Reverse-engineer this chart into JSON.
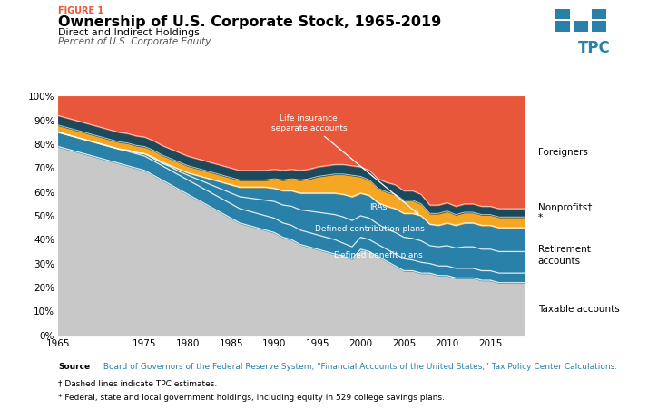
{
  "title_figure": "FIGURE 1",
  "title_main": "Ownership of U.S. Corporate Stock, 1965-2019",
  "title_sub": "Direct and Indirect Holdings",
  "title_yaxis": "Percent of U.S. Corporate Equity",
  "years": [
    1965,
    1966,
    1967,
    1968,
    1969,
    1970,
    1971,
    1972,
    1973,
    1974,
    1975,
    1976,
    1977,
    1978,
    1979,
    1980,
    1981,
    1982,
    1983,
    1984,
    1985,
    1986,
    1987,
    1988,
    1989,
    1990,
    1991,
    1992,
    1993,
    1994,
    1995,
    1996,
    1997,
    1998,
    1999,
    2000,
    2001,
    2002,
    2003,
    2004,
    2005,
    2006,
    2007,
    2008,
    2009,
    2010,
    2011,
    2012,
    2013,
    2014,
    2015,
    2016,
    2017,
    2018,
    2019
  ],
  "taxable_accounts": [
    79,
    78,
    77,
    76,
    75,
    74,
    73,
    72,
    71,
    70,
    69,
    67,
    65,
    63,
    61,
    59,
    57,
    55,
    53,
    51,
    49,
    47,
    46,
    45,
    44,
    43,
    41,
    40,
    38,
    37,
    36,
    35,
    34,
    33,
    32,
    36,
    35,
    33,
    31,
    29,
    27,
    27,
    26,
    26,
    25,
    25,
    24,
    24,
    24,
    23,
    23,
    22,
    22,
    22,
    22
  ],
  "defined_benefit": [
    6,
    6,
    6,
    6,
    6,
    6,
    6,
    6,
    6,
    6,
    6,
    6,
    6,
    6,
    6,
    6,
    6,
    6,
    6,
    6,
    6,
    6,
    6,
    6,
    6,
    6,
    6,
    6,
    6,
    6,
    6,
    6,
    6,
    5.5,
    5,
    5,
    5,
    5,
    5,
    5,
    5,
    4.5,
    4.5,
    4,
    4,
    4,
    4,
    4,
    4,
    4,
    4,
    4,
    4,
    4,
    4
  ],
  "defined_contribution": [
    0,
    0,
    0,
    0,
    0,
    0,
    0,
    0,
    0.5,
    0.5,
    1,
    1,
    1,
    1.5,
    1.5,
    2,
    2.5,
    3,
    3.5,
    4,
    4.5,
    5,
    5.5,
    6,
    6.5,
    7,
    7.5,
    8,
    8.5,
    9,
    9.5,
    10,
    10.5,
    11,
    11,
    9,
    9,
    8.5,
    8.5,
    9,
    9,
    9,
    9,
    7.5,
    8,
    8.5,
    8.5,
    9,
    9,
    9,
    9,
    9,
    9,
    9,
    9
  ],
  "iras": [
    0,
    0,
    0,
    0,
    0,
    0,
    0,
    0,
    0,
    0,
    0,
    0.5,
    0.5,
    0.5,
    1,
    1,
    1.5,
    2,
    2.5,
    3,
    3.5,
    4,
    4.5,
    5,
    5.5,
    5.5,
    6,
    6.5,
    7,
    7.5,
    8,
    8.5,
    9,
    9.5,
    10,
    9.5,
    9.5,
    9,
    9.5,
    10,
    10,
    10.5,
    10.5,
    9,
    9,
    9.5,
    9.5,
    10,
    10,
    10,
    10,
    10,
    10,
    10,
    10
  ],
  "life_insurance": [
    3,
    3,
    3,
    3,
    3,
    3,
    3,
    3,
    3,
    3,
    3,
    3,
    3,
    3,
    3,
    3,
    3,
    3,
    3,
    3,
    3,
    3,
    3,
    3,
    3,
    4,
    4.5,
    5,
    5.5,
    6,
    7,
    7.5,
    8,
    8.5,
    9,
    7,
    6.5,
    6,
    6,
    6,
    5.5,
    5.5,
    5,
    4.5,
    5,
    5,
    4.5,
    4.5,
    4.5,
    4.5,
    4.5,
    4.5,
    4.5,
    4.5,
    4.5
  ],
  "nonprofits": [
    4,
    4,
    4,
    4,
    4,
    4,
    4,
    4,
    4,
    4,
    4,
    4,
    4,
    4,
    4,
    4,
    4,
    4,
    4,
    4,
    4,
    4,
    4,
    4,
    4,
    4,
    4,
    4,
    4,
    4,
    4,
    4,
    4,
    4,
    4,
    4,
    4,
    4,
    4,
    4,
    4,
    4,
    4,
    3.5,
    3.5,
    3.5,
    3.5,
    3.5,
    3.5,
    3.5,
    3.5,
    3.5,
    3.5,
    3.5,
    3.5
  ],
  "colors": {
    "taxable": "#c8c8c8",
    "retirement": "#2980a8",
    "nonprofits": "#1a4a5c",
    "life_insurance": "#f5a623",
    "foreigners": "#e8573a"
  },
  "source_bold": "Source",
  "source_rest": " Board of Governors of the Federal Reserve System, “Financial Accounts of the United States;” Tax Policy Center Calculations.",
  "footnote1": "† Dashed lines indicate TPC estimates.",
  "footnote2": "* Federal, state and local government holdings, including equity in 529 college savings plans.",
  "xticks": [
    1965,
    1975,
    1980,
    1985,
    1990,
    1995,
    2000,
    2005,
    2010,
    2015
  ],
  "yticks": [
    0,
    10,
    20,
    30,
    40,
    50,
    60,
    70,
    80,
    90,
    100
  ]
}
